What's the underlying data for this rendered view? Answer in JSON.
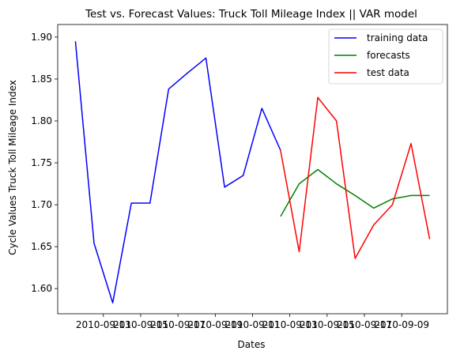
{
  "chart_data": {
    "type": "line",
    "title": "Test vs. Forecast Values: Truck Toll Mileage Index || VAR model",
    "xlabel": "Dates",
    "ylabel": "Cycle Values Truck Toll Mileage Index",
    "x_ticks": [
      "2010-09-13",
      "2010-09-15",
      "2010-09-17",
      "2010-09-19",
      "2010-09-11",
      "2010-09-13",
      "2010-09-15",
      "2010-09-17",
      "2010-09-09"
    ],
    "y_ticks": [
      "1.60",
      "1.65",
      "1.70",
      "1.75",
      "1.80",
      "1.85",
      "1.90"
    ],
    "ylim": [
      1.57,
      1.915
    ],
    "legend_position": "top-right",
    "series": [
      {
        "name": "training data",
        "color": "#0000ff",
        "points": [
          [
            0,
            1.895
          ],
          [
            1,
            1.654
          ],
          [
            2,
            1.583
          ],
          [
            3,
            1.702
          ],
          [
            4,
            1.702
          ],
          [
            5,
            1.838
          ],
          [
            6,
            1.857
          ],
          [
            7,
            1.875
          ],
          [
            8,
            1.721
          ],
          [
            9,
            1.735
          ],
          [
            10,
            1.815
          ],
          [
            11,
            1.765
          ]
        ]
      },
      {
        "name": "forecasts",
        "color": "#008000",
        "points": [
          [
            11,
            1.686
          ],
          [
            12,
            1.725
          ],
          [
            13,
            1.742
          ],
          [
            14,
            1.725
          ],
          [
            15,
            1.711
          ],
          [
            16,
            1.696
          ],
          [
            17,
            1.707
          ],
          [
            18,
            1.711
          ],
          [
            19,
            1.711
          ]
        ]
      },
      {
        "name": "test data",
        "color": "#ff0000",
        "points": [
          [
            11,
            1.765
          ],
          [
            12,
            1.644
          ],
          [
            13,
            1.828
          ],
          [
            14,
            1.8
          ],
          [
            15,
            1.636
          ],
          [
            16,
            1.676
          ],
          [
            17,
            1.7
          ],
          [
            18,
            1.773
          ],
          [
            19,
            1.659
          ]
        ]
      }
    ]
  }
}
